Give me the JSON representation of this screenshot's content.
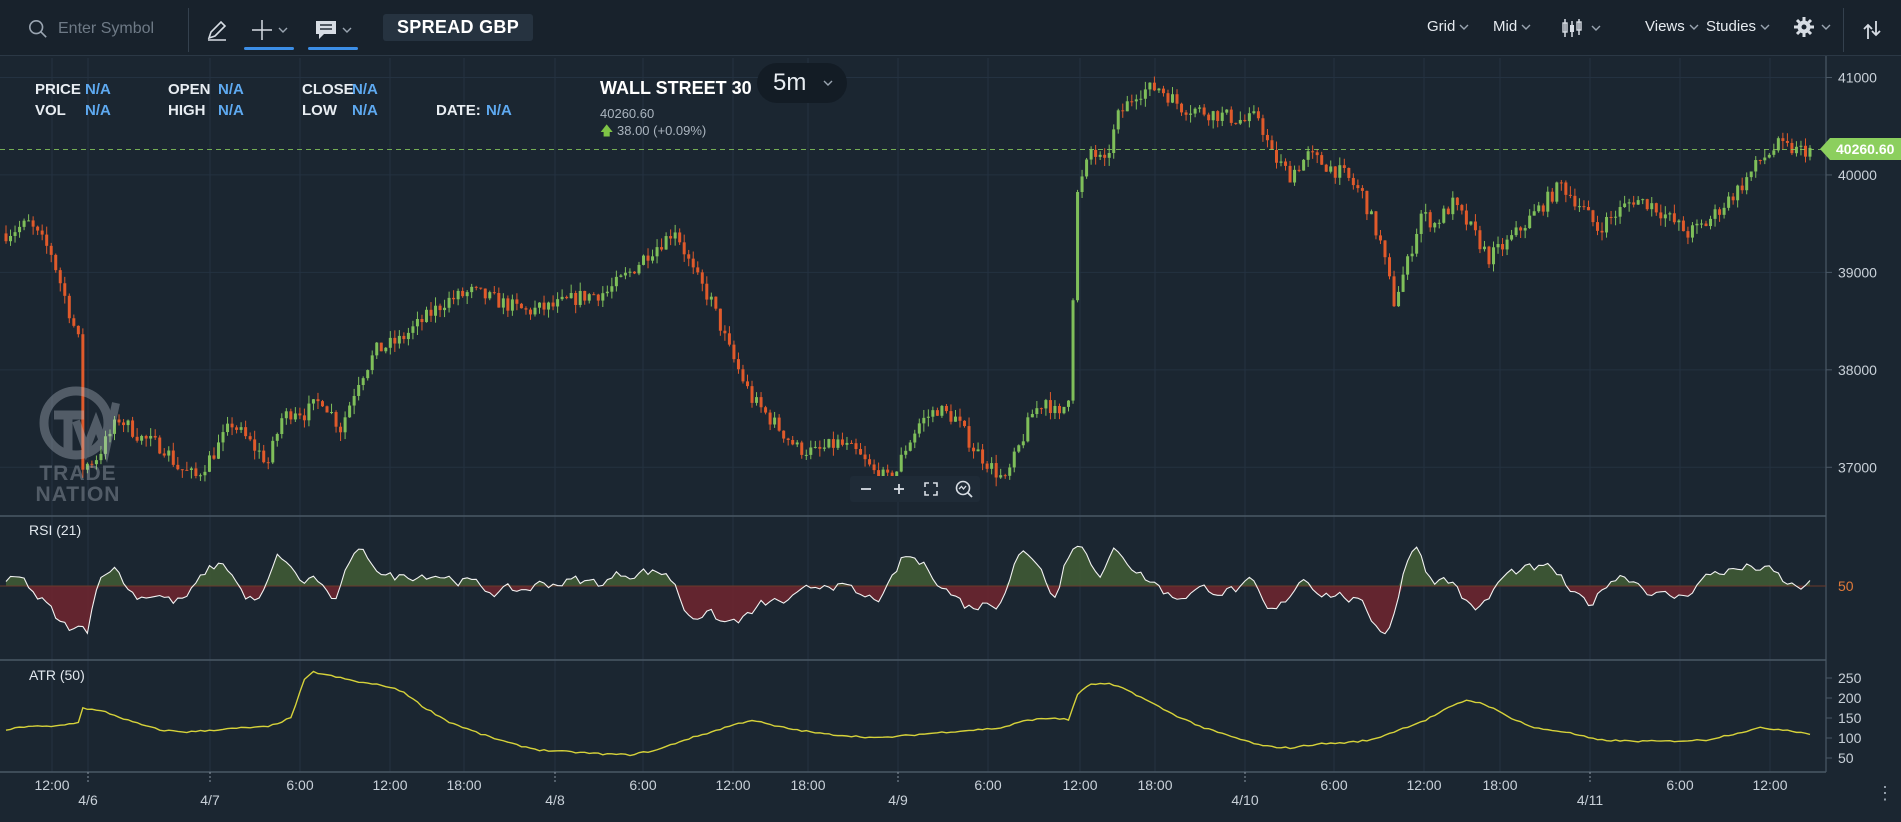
{
  "toolbar": {
    "search_placeholder": "Enter Symbol",
    "mode": "SPREAD GBP",
    "menus": [
      "Grid",
      "Mid",
      "Views",
      "Studies"
    ]
  },
  "ohlc": {
    "price_label": "PRICE",
    "price_value": "N/A",
    "vol_label": "VOL",
    "vol_value": "N/A",
    "open_label": "OPEN",
    "open_value": "N/A",
    "high_label": "HIGH",
    "high_value": "N/A",
    "close_label": "CLOSE",
    "close_value": "N/A",
    "low_label": "LOW",
    "low_value": "N/A",
    "date_label": "DATE:",
    "date_value": "N/A"
  },
  "instrument": {
    "name": "WALL STREET 30",
    "price": "40260.60",
    "change": "38.00 (+0.09%)",
    "timeframe": "5m"
  },
  "watermark": {
    "line1": "TRADE",
    "line2": "NATION"
  },
  "panes": {
    "rsi_label": "RSI (21)",
    "rsi_level": "50",
    "atr_label": "ATR (50)"
  },
  "current_price_tag": "40260.60",
  "colors": {
    "background": "#1b2631",
    "up": "#7fbf5a",
    "down": "#e05a2b",
    "rsi_above": "#3f5a35",
    "rsi_below": "#6b2630",
    "atr": "#d6d23a",
    "price_tag": "#8ccf5e",
    "accent": "#3c8ee6"
  },
  "chart_data": [
    {
      "type": "candlestick",
      "title": "WALL STREET 30",
      "interval": "5m",
      "y_ticks": [
        41000,
        40000,
        39000,
        38000,
        37000
      ],
      "ylim": [
        36500,
        41200
      ],
      "current_price": 40260.6,
      "x_ticks": [
        {
          "label": "12:00",
          "major": false
        },
        {
          "label": "4/6",
          "major": true
        },
        {
          "label": "4/7",
          "major": true
        },
        {
          "label": "6:00",
          "major": false
        },
        {
          "label": "12:00",
          "major": false
        },
        {
          "label": "18:00",
          "major": false
        },
        {
          "label": "4/8",
          "major": true
        },
        {
          "label": "6:00",
          "major": false
        },
        {
          "label": "12:00",
          "major": false
        },
        {
          "label": "18:00",
          "major": false
        },
        {
          "label": "4/9",
          "major": true
        },
        {
          "label": "6:00",
          "major": false
        },
        {
          "label": "12:00",
          "major": false
        },
        {
          "label": "18:00",
          "major": false
        },
        {
          "label": "4/10",
          "major": true
        },
        {
          "label": "6:00",
          "major": false
        },
        {
          "label": "12:00",
          "major": false
        },
        {
          "label": "18:00",
          "major": false
        },
        {
          "label": "4/11",
          "major": true
        },
        {
          "label": "6:00",
          "major": false
        },
        {
          "label": "12:00",
          "major": false
        }
      ],
      "price_path": [
        [
          0,
          39400
        ],
        [
          5,
          39500
        ],
        [
          10,
          39200
        ],
        [
          14,
          38600
        ],
        [
          16,
          38300
        ],
        [
          17,
          37000
        ],
        [
          20,
          37100
        ],
        [
          25,
          37500
        ],
        [
          30,
          37300
        ],
        [
          35,
          37200
        ],
        [
          38,
          37000
        ],
        [
          42,
          36900
        ],
        [
          46,
          37150
        ],
        [
          50,
          37450
        ],
        [
          54,
          37250
        ],
        [
          58,
          37050
        ],
        [
          61,
          37500
        ],
        [
          64,
          37600
        ],
        [
          66,
          37550
        ],
        [
          70,
          37700
        ],
        [
          74,
          37400
        ],
        [
          78,
          37900
        ],
        [
          82,
          38200
        ],
        [
          87,
          38300
        ],
        [
          92,
          38500
        ],
        [
          97,
          38700
        ],
        [
          103,
          38800
        ],
        [
          109,
          38700
        ],
        [
          115,
          38600
        ],
        [
          121,
          38650
        ],
        [
          127,
          38750
        ],
        [
          133,
          38800
        ],
        [
          138,
          39000
        ],
        [
          142,
          39200
        ],
        [
          146,
          39350
        ],
        [
          148,
          39450
        ],
        [
          152,
          39000
        ],
        [
          156,
          38700
        ],
        [
          160,
          38200
        ],
        [
          165,
          37700
        ],
        [
          170,
          37450
        ],
        [
          175,
          37200
        ],
        [
          179,
          37150
        ],
        [
          184,
          37250
        ],
        [
          188,
          37150
        ],
        [
          192,
          36950
        ],
        [
          196,
          36850
        ],
        [
          199,
          37200
        ],
        [
          202,
          37450
        ],
        [
          206,
          37600
        ],
        [
          210,
          37500
        ],
        [
          214,
          37200
        ],
        [
          218,
          37000
        ],
        [
          221,
          36850
        ],
        [
          224,
          37200
        ],
        [
          227,
          37550
        ],
        [
          230,
          37700
        ],
        [
          233,
          37500
        ],
        [
          235,
          37750
        ],
        [
          237,
          39800
        ],
        [
          240,
          40250
        ],
        [
          243,
          40100
        ],
        [
          246,
          40600
        ],
        [
          250,
          40850
        ],
        [
          255,
          40900
        ],
        [
          260,
          40700
        ],
        [
          265,
          40650
        ],
        [
          270,
          40600
        ],
        [
          274,
          40550
        ],
        [
          277,
          40600
        ],
        [
          280,
          40200
        ],
        [
          284,
          40000
        ],
        [
          288,
          40200
        ],
        [
          292,
          40100
        ],
        [
          296,
          40000
        ],
        [
          300,
          39800
        ],
        [
          304,
          39300
        ],
        [
          307,
          38700
        ],
        [
          310,
          39100
        ],
        [
          313,
          39600
        ],
        [
          316,
          39500
        ],
        [
          320,
          39700
        ],
        [
          324,
          39450
        ],
        [
          328,
          39150
        ],
        [
          332,
          39300
        ],
        [
          336,
          39500
        ],
        [
          340,
          39700
        ],
        [
          344,
          39900
        ],
        [
          348,
          39700
        ],
        [
          352,
          39450
        ],
        [
          356,
          39600
        ],
        [
          360,
          39750
        ],
        [
          364,
          39700
        ],
        [
          368,
          39550
        ],
        [
          372,
          39400
        ],
        [
          376,
          39500
        ],
        [
          380,
          39700
        ],
        [
          384,
          39900
        ],
        [
          388,
          40150
        ],
        [
          392,
          40300
        ],
        [
          396,
          40250
        ],
        [
          399,
          40260
        ]
      ]
    },
    {
      "type": "line",
      "title": "RSI (21)",
      "level": 50
    },
    {
      "type": "line",
      "title": "ATR (50)",
      "y_ticks": [
        250,
        200,
        150,
        100,
        50
      ],
      "ylim": [
        30,
        280
      ],
      "atr_path": [
        [
          0,
          120
        ],
        [
          5,
          130
        ],
        [
          10,
          128
        ],
        [
          14,
          135
        ],
        [
          16,
          140
        ],
        [
          17,
          175
        ],
        [
          22,
          165
        ],
        [
          28,
          140
        ],
        [
          34,
          120
        ],
        [
          40,
          115
        ],
        [
          46,
          120
        ],
        [
          52,
          125
        ],
        [
          58,
          128
        ],
        [
          63,
          150
        ],
        [
          66,
          245
        ],
        [
          68,
          265
        ],
        [
          72,
          255
        ],
        [
          78,
          240
        ],
        [
          84,
          230
        ],
        [
          88,
          215
        ],
        [
          92,
          180
        ],
        [
          98,
          140
        ],
        [
          105,
          110
        ],
        [
          112,
          85
        ],
        [
          118,
          70
        ],
        [
          125,
          65
        ],
        [
          132,
          60
        ],
        [
          138,
          58
        ],
        [
          144,
          70
        ],
        [
          150,
          95
        ],
        [
          156,
          115
        ],
        [
          160,
          130
        ],
        [
          165,
          145
        ],
        [
          170,
          130
        ],
        [
          175,
          120
        ],
        [
          181,
          110
        ],
        [
          187,
          105
        ],
        [
          193,
          100
        ],
        [
          198,
          105
        ],
        [
          203,
          110
        ],
        [
          208,
          115
        ],
        [
          214,
          120
        ],
        [
          220,
          125
        ],
        [
          226,
          145
        ],
        [
          232,
          150
        ],
        [
          235,
          145
        ],
        [
          237,
          210
        ],
        [
          240,
          235
        ],
        [
          244,
          235
        ],
        [
          248,
          220
        ],
        [
          253,
          190
        ],
        [
          258,
          160
        ],
        [
          265,
          125
        ],
        [
          272,
          100
        ],
        [
          278,
          80
        ],
        [
          284,
          75
        ],
        [
          290,
          85
        ],
        [
          296,
          88
        ],
        [
          302,
          95
        ],
        [
          308,
          120
        ],
        [
          314,
          145
        ],
        [
          319,
          175
        ],
        [
          323,
          195
        ],
        [
          327,
          185
        ],
        [
          332,
          155
        ],
        [
          338,
          125
        ],
        [
          345,
          115
        ],
        [
          352,
          95
        ],
        [
          360,
          92
        ],
        [
          368,
          92
        ],
        [
          376,
          95
        ],
        [
          382,
          110
        ],
        [
          388,
          125
        ],
        [
          394,
          120
        ],
        [
          399,
          110
        ]
      ]
    }
  ]
}
